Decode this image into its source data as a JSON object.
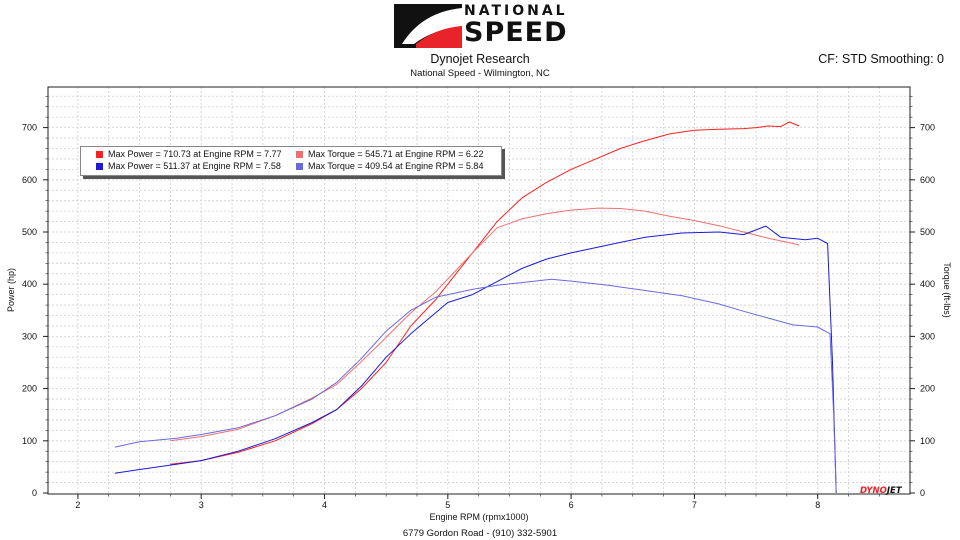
{
  "header": {
    "logo_top": "NATIONAL",
    "logo_bottom": "SPEED",
    "title": "Dynojet Research",
    "subtitle": "National Speed - Wilmington, NC",
    "settings": "CF: STD Smoothing: 0",
    "footer": "6779 Gordon Road - (910) 332-5901"
  },
  "brand": {
    "part1": "DYNO",
    "part2": "JET"
  },
  "legend": [
    {
      "text": "Max Power = 710.73 at Engine RPM = 7.77",
      "color": "#ff2020"
    },
    {
      "text": "Max Torque = 545.71 at Engine RPM = 6.22",
      "color": "#f07070"
    },
    {
      "text": "Max Power = 511.37 at Engine RPM = 7.58",
      "color": "#1a1ad8"
    },
    {
      "text": "Max Torque = 409.54 at Engine RPM = 5.84",
      "color": "#6a6ae0"
    }
  ],
  "chart_data": {
    "type": "line",
    "xlabel": "Engine RPM (rpmx1000)",
    "ylabel": "Power (hp)",
    "y2label": "Torque (ft-lbs)",
    "xlim": [
      1.7,
      8.7
    ],
    "ylim": [
      0,
      780
    ],
    "xticks": [
      2,
      3,
      4,
      5,
      6,
      7,
      8
    ],
    "yticks": [
      0,
      100,
      200,
      300,
      400,
      500,
      600,
      700
    ],
    "grid": true,
    "legend_position": "top-left",
    "series": [
      {
        "axis": "left",
        "color": "#ff2020",
        "x": [
          2.75,
          3.0,
          3.3,
          3.6,
          3.9,
          4.1,
          4.3,
          4.5,
          4.7,
          4.9,
          5.0,
          5.2,
          5.4,
          5.6,
          5.8,
          6.0,
          6.2,
          6.4,
          6.6,
          6.8,
          7.0,
          7.2,
          7.4,
          7.5,
          7.6,
          7.7,
          7.77,
          7.85
        ],
        "y": [
          55,
          62,
          78,
          100,
          133,
          160,
          200,
          250,
          320,
          370,
          400,
          460,
          520,
          565,
          595,
          620,
          640,
          660,
          675,
          688,
          695,
          697,
          698,
          700,
          703,
          702,
          710.73,
          703
        ]
      },
      {
        "axis": "right",
        "color": "#f07070",
        "x": [
          2.75,
          3.0,
          3.3,
          3.6,
          3.9,
          4.1,
          4.3,
          4.5,
          4.7,
          4.9,
          5.0,
          5.2,
          5.4,
          5.6,
          5.8,
          6.0,
          6.22,
          6.4,
          6.6,
          6.8,
          7.0,
          7.2,
          7.4,
          7.6,
          7.8,
          7.85
        ],
        "y": [
          100,
          108,
          122,
          148,
          182,
          208,
          252,
          298,
          345,
          385,
          410,
          460,
          508,
          525,
          535,
          542,
          545.71,
          545,
          540,
          530,
          522,
          512,
          500,
          488,
          478,
          475
        ]
      },
      {
        "axis": "left",
        "color": "#1a1ad8",
        "x": [
          2.3,
          2.5,
          2.8,
          3.0,
          3.3,
          3.6,
          3.9,
          4.1,
          4.3,
          4.5,
          4.7,
          4.9,
          5.0,
          5.2,
          5.4,
          5.6,
          5.8,
          6.0,
          6.3,
          6.6,
          6.9,
          7.2,
          7.4,
          7.58,
          7.7,
          7.9,
          8.0,
          8.08,
          8.12,
          8.15
        ],
        "y": [
          38,
          45,
          55,
          62,
          80,
          104,
          135,
          160,
          205,
          260,
          305,
          345,
          365,
          380,
          405,
          430,
          448,
          460,
          475,
          490,
          498,
          500,
          495,
          511.37,
          490,
          485,
          488,
          478,
          250,
          0
        ]
      },
      {
        "axis": "right",
        "color": "#6a6ae0",
        "x": [
          2.3,
          2.5,
          2.8,
          3.0,
          3.3,
          3.6,
          3.9,
          4.1,
          4.3,
          4.5,
          4.7,
          4.9,
          5.0,
          5.2,
          5.4,
          5.6,
          5.84,
          6.0,
          6.3,
          6.6,
          6.9,
          7.2,
          7.4,
          7.6,
          7.8,
          8.0,
          8.1,
          8.13,
          8.15
        ],
        "y": [
          88,
          98,
          105,
          112,
          125,
          148,
          180,
          212,
          258,
          310,
          350,
          375,
          380,
          390,
          398,
          403,
          409.54,
          406,
          398,
          388,
          378,
          362,
          348,
          335,
          322,
          318,
          305,
          150,
          0
        ]
      }
    ]
  }
}
